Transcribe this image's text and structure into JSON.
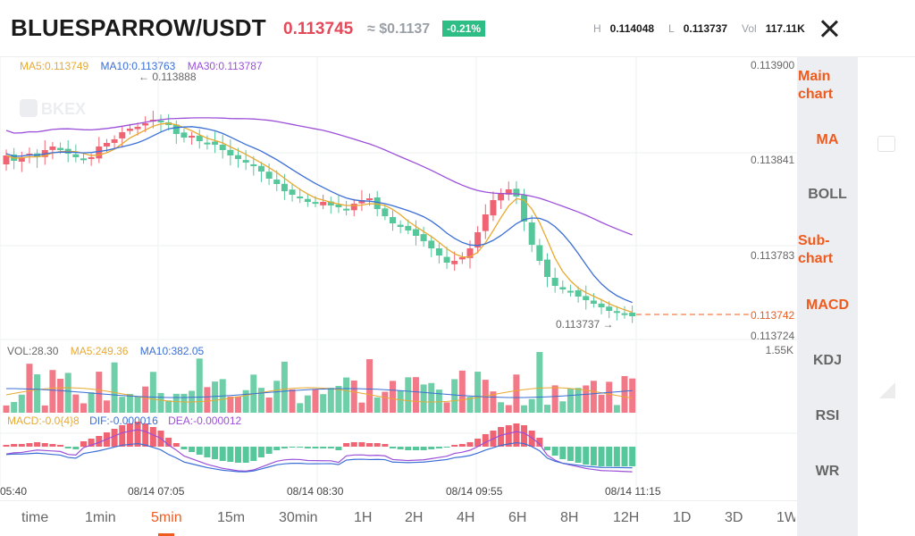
{
  "header": {
    "pair": "BLUESPARROW/USDT",
    "price": "0.113745",
    "approx": "≈ $0.1137",
    "change": "-0.21%",
    "high_label": "H",
    "high_value": "0.114048",
    "low_label": "L",
    "low_value": "0.113737",
    "vol_label": "Vol",
    "vol_value": "117.11K"
  },
  "chart": {
    "watermark": "BKEX",
    "ma_legend": {
      "ma5": "MA5:0.113749",
      "ma10": "MA10:0.113763",
      "ma30": "MA30:0.113787"
    },
    "price_axis": [
      "0.113900",
      "0.113841",
      "0.113783",
      "0.113724"
    ],
    "last_price_tag": "0.113742",
    "high_marker": "← 0.113888",
    "low_marker": "0.113737 →",
    "volume_legend": {
      "vol": "VOL:28.30",
      "ma5": "MA5:249.36",
      "ma10": "MA10:382.05"
    },
    "volume_axis_label": "1.55K",
    "macd_legend": {
      "macd": "MACD:-0.0{4}8",
      "dif": "DIF:-0.000016",
      "dea": "DEA:-0.000012"
    },
    "time_axis": [
      "05:40",
      "08/14 07:05",
      "08/14 08:30",
      "08/14 09:55",
      "08/14 11:15"
    ],
    "colors": {
      "up": "#f06373",
      "down": "#55c79a",
      "ma5": "#e8a930",
      "ma10": "#3b6fd6",
      "ma30": "#9c4fd8",
      "accent": "#ef5b1e"
    }
  },
  "side_panel": {
    "main_chart": "Main chart",
    "ma": "MA",
    "boll": "BOLL",
    "sub_chart": "Sub-chart",
    "macd": "MACD",
    "kdj": "KDJ",
    "rsi": "RSI",
    "wr": "WR"
  },
  "timeframes": [
    {
      "label": "time"
    },
    {
      "label": "1min"
    },
    {
      "label": "5min"
    },
    {
      "label": "15m"
    },
    {
      "label": "30min"
    },
    {
      "label": "1H"
    },
    {
      "label": "2H"
    },
    {
      "label": "4H"
    },
    {
      "label": "6H"
    },
    {
      "label": "8H"
    },
    {
      "label": "12H"
    },
    {
      "label": "1D"
    },
    {
      "label": "3D"
    },
    {
      "label": "1W"
    }
  ],
  "active_timeframe": "5min"
}
